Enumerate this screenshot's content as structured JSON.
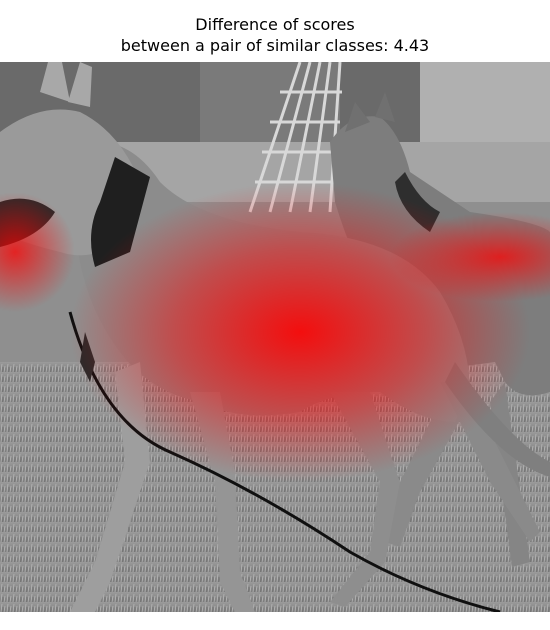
{
  "figure": {
    "title_line1": "Difference of scores",
    "title_line2": "between a pair of similar classes: 4.43"
  },
  "image": {
    "subject": "greyhound-dogs-on-leash",
    "overlay_color": "#ff0000"
  }
}
